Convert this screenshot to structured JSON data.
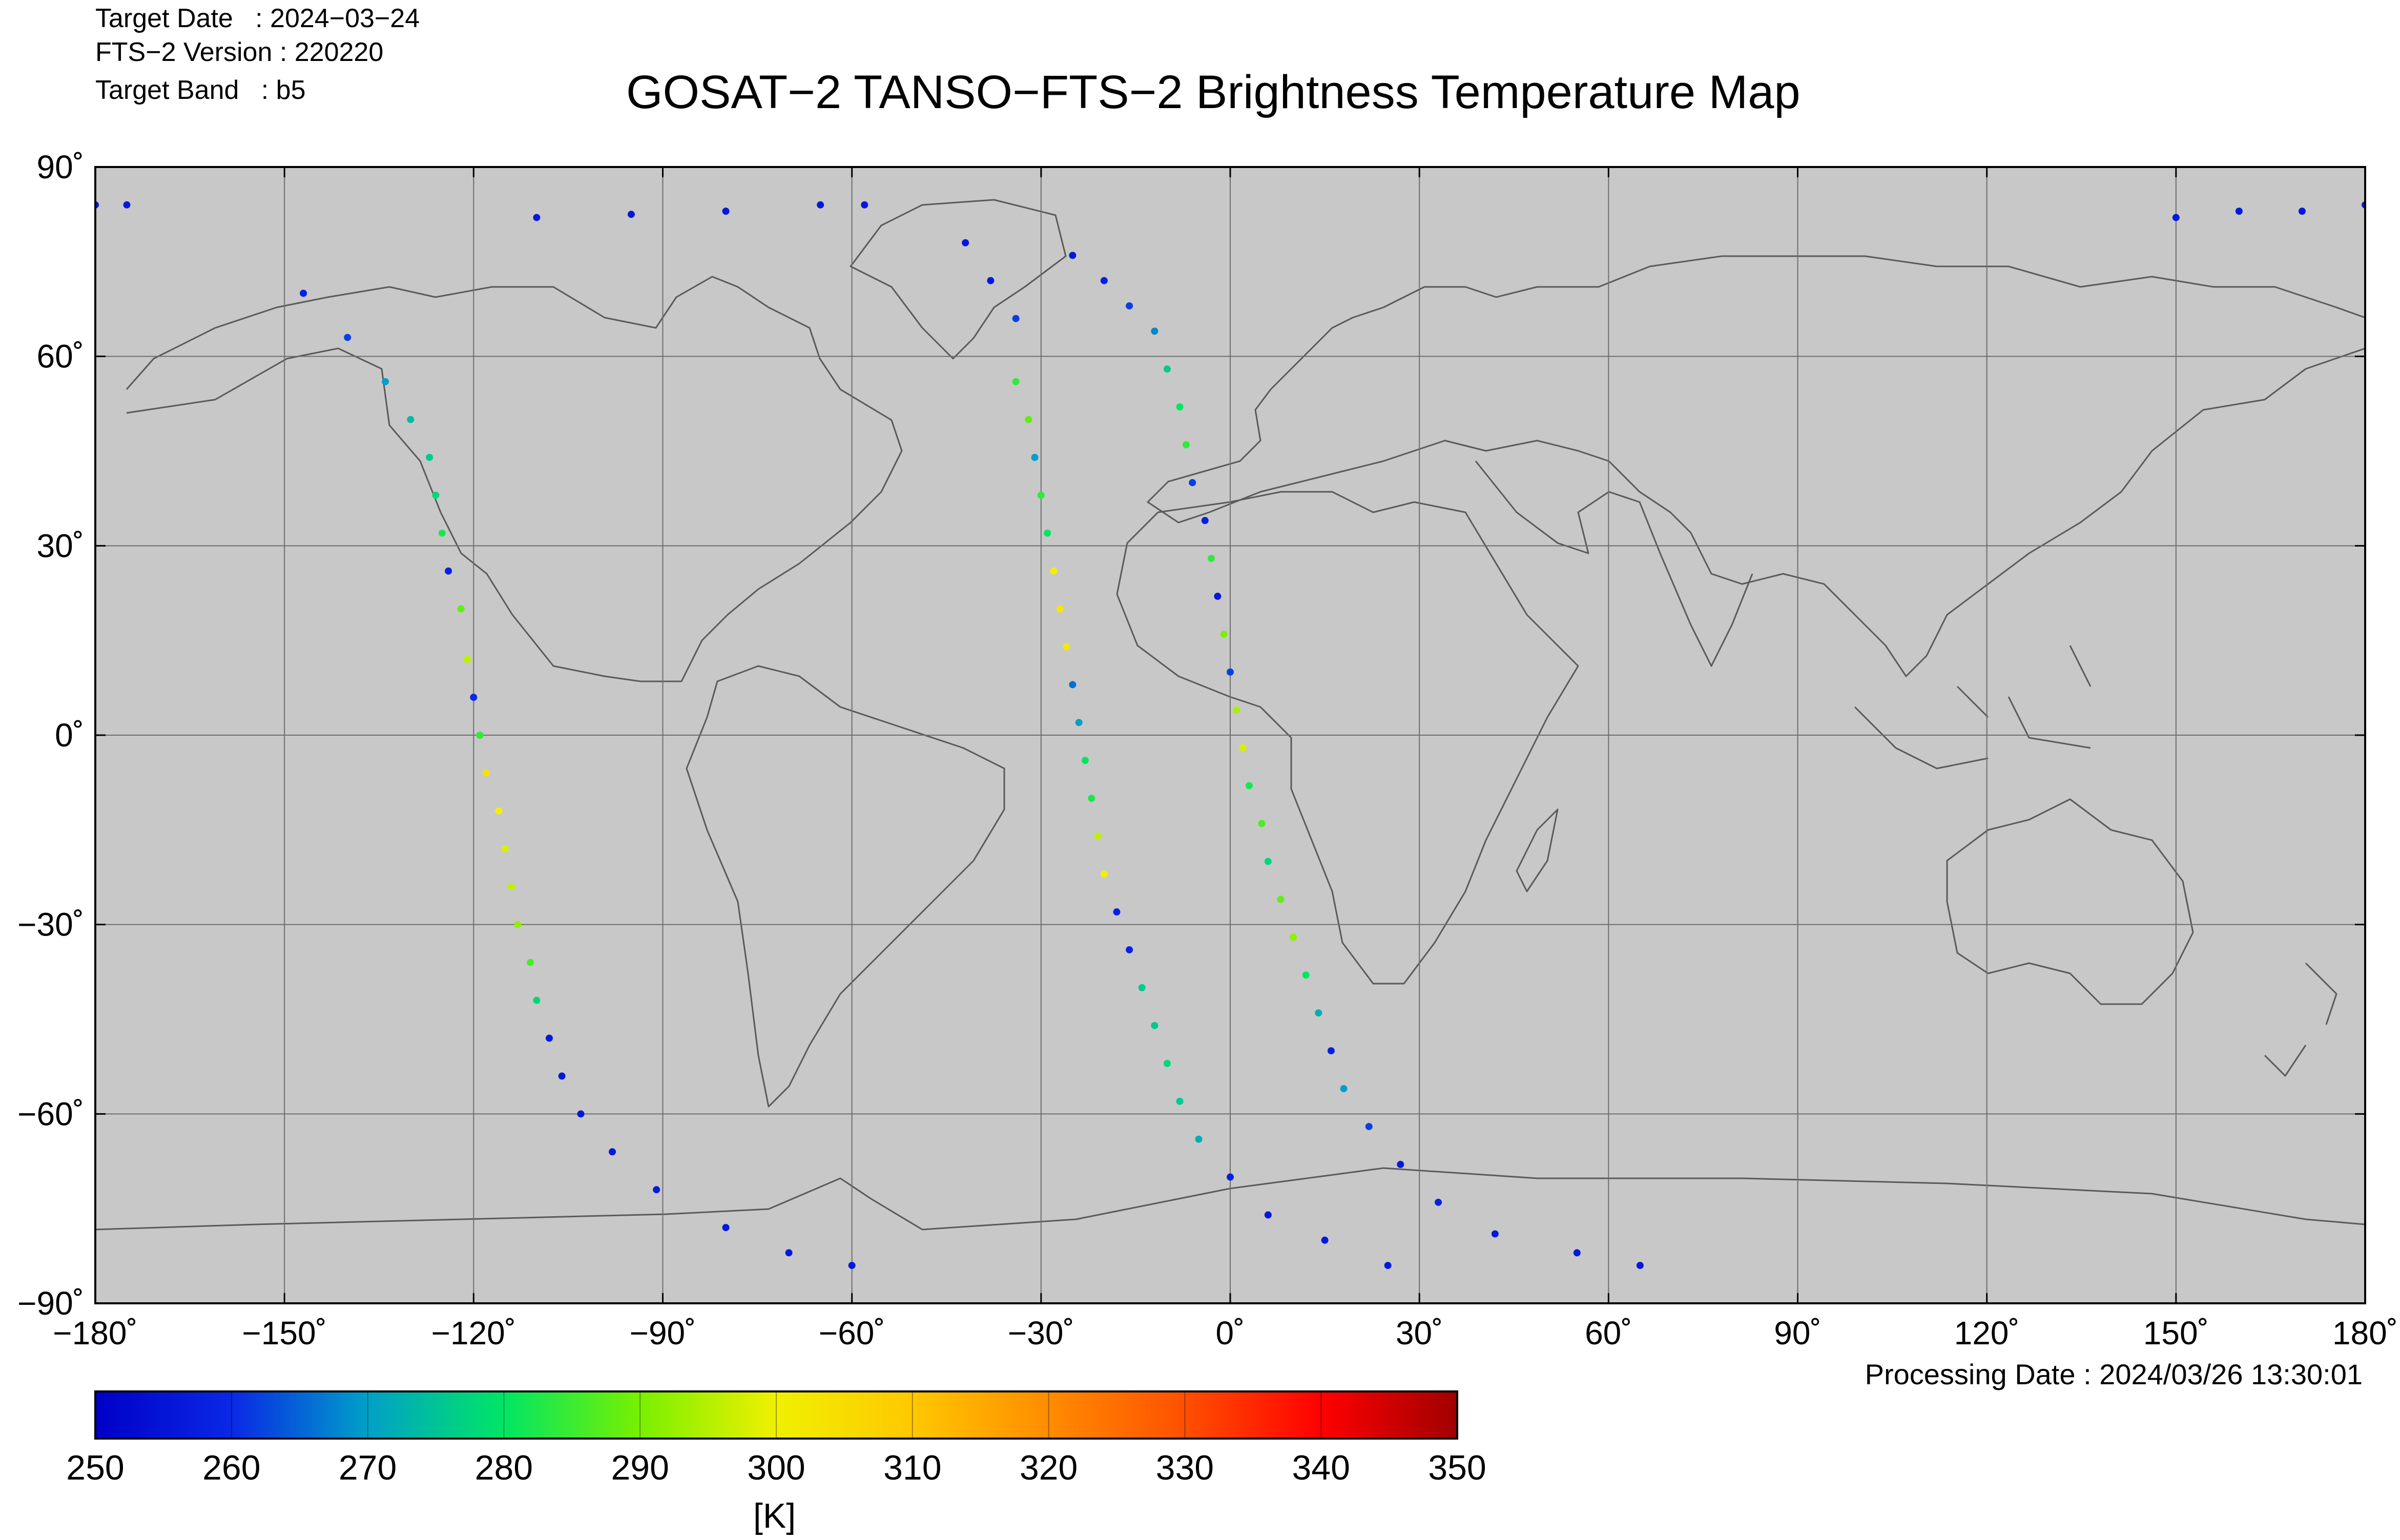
{
  "header": {
    "target_date": "Target Date   : 2024−03−24",
    "fts_version": "FTS−2 Version : 220220",
    "target_band": "Target Band   : b5",
    "title": "GOSAT−2 TANSO−FTS−2 Brightness Temperature Map"
  },
  "map": {
    "projection": "equirectangular",
    "lon_range": [
      -180,
      180
    ],
    "lat_range": [
      -90,
      90
    ],
    "grid": true,
    "background_color": "#c8c8c8",
    "coastline_color": "#555555",
    "lon_ticks": [
      {
        "value": -180,
        "label": "−180˚"
      },
      {
        "value": -150,
        "label": "−150˚"
      },
      {
        "value": -120,
        "label": "−120˚"
      },
      {
        "value": -90,
        "label": "−90˚"
      },
      {
        "value": -60,
        "label": "−60˚"
      },
      {
        "value": -30,
        "label": "−30˚"
      },
      {
        "value": 0,
        "label": "0˚"
      },
      {
        "value": 30,
        "label": "30˚"
      },
      {
        "value": 60,
        "label": "60˚"
      },
      {
        "value": 90,
        "label": "90˚"
      },
      {
        "value": 120,
        "label": "120˚"
      },
      {
        "value": 150,
        "label": "150˚"
      },
      {
        "value": 180,
        "label": "180˚"
      }
    ],
    "lat_ticks": [
      {
        "value": 90,
        "label": "90˚"
      },
      {
        "value": 60,
        "label": "60˚"
      },
      {
        "value": 30,
        "label": "30˚"
      },
      {
        "value": 0,
        "label": "0˚"
      },
      {
        "value": -30,
        "label": "−30˚"
      },
      {
        "value": -60,
        "label": "−60˚"
      },
      {
        "value": -90,
        "label": "−90˚"
      }
    ]
  },
  "chart_data": {
    "type": "scatter",
    "value_unit": "K",
    "color_range": [
      250,
      350
    ],
    "tracks": [
      {
        "points": [
          [
            -147,
            70,
            258
          ],
          [
            -140,
            63,
            262
          ],
          [
            -134,
            56,
            270
          ],
          [
            -130,
            50,
            274
          ],
          [
            -127,
            44,
            276
          ],
          [
            -126,
            38,
            278
          ],
          [
            -125,
            32,
            282
          ],
          [
            -124,
            26,
            258
          ],
          [
            -122,
            20,
            288
          ],
          [
            -121,
            12,
            296
          ],
          [
            -120,
            6,
            260
          ],
          [
            -119,
            0,
            284
          ],
          [
            -118,
            -6,
            304
          ],
          [
            -116,
            -12,
            300
          ],
          [
            -115,
            -18,
            298
          ],
          [
            -114,
            -24,
            296
          ],
          [
            -113,
            -30,
            292
          ],
          [
            -111,
            -36,
            286
          ],
          [
            -110,
            -42,
            278
          ],
          [
            -108,
            -48,
            256
          ],
          [
            -106,
            -54,
            256
          ],
          [
            -103,
            -60,
            256
          ],
          [
            -98,
            -66,
            256
          ],
          [
            -91,
            -72,
            256
          ],
          [
            -80,
            -78,
            256
          ],
          [
            -70,
            -82,
            256
          ],
          [
            -60,
            -84,
            256
          ]
        ]
      },
      {
        "points": [
          [
            -42,
            78,
            256
          ],
          [
            -38,
            72,
            256
          ],
          [
            -34,
            66,
            262
          ],
          [
            -34,
            56,
            284
          ],
          [
            -32,
            50,
            288
          ],
          [
            -31,
            44,
            270
          ],
          [
            -30,
            38,
            284
          ],
          [
            -29,
            32,
            280
          ],
          [
            -28,
            26,
            300
          ],
          [
            -27,
            20,
            302
          ],
          [
            -26,
            14,
            302
          ],
          [
            -25,
            8,
            266
          ],
          [
            -24,
            2,
            270
          ],
          [
            -23,
            -4,
            280
          ],
          [
            -22,
            -10,
            282
          ],
          [
            -21,
            -16,
            296
          ],
          [
            -20,
            -22,
            300
          ],
          [
            -18,
            -28,
            258
          ],
          [
            -16,
            -34,
            258
          ],
          [
            -14,
            -40,
            276
          ],
          [
            -12,
            -46,
            276
          ],
          [
            -10,
            -52,
            278
          ],
          [
            -8,
            -58,
            276
          ],
          [
            -5,
            -64,
            272
          ],
          [
            0,
            -70,
            258
          ],
          [
            6,
            -76,
            256
          ],
          [
            15,
            -80,
            256
          ],
          [
            25,
            -84,
            256
          ]
        ]
      },
      {
        "points": [
          [
            -25,
            76,
            256
          ],
          [
            -20,
            72,
            258
          ],
          [
            -16,
            68,
            262
          ],
          [
            -12,
            64,
            268
          ],
          [
            -10,
            58,
            276
          ],
          [
            -8,
            52,
            280
          ],
          [
            -7,
            46,
            284
          ],
          [
            -6,
            40,
            262
          ],
          [
            -4,
            34,
            258
          ],
          [
            -3,
            28,
            284
          ],
          [
            -2,
            22,
            256
          ],
          [
            -1,
            16,
            290
          ],
          [
            0,
            10,
            262
          ],
          [
            1,
            4,
            294
          ],
          [
            2,
            -2,
            298
          ],
          [
            3,
            -8,
            282
          ],
          [
            5,
            -14,
            286
          ],
          [
            6,
            -20,
            278
          ],
          [
            8,
            -26,
            288
          ],
          [
            10,
            -32,
            292
          ],
          [
            12,
            -38,
            280
          ],
          [
            14,
            -44,
            272
          ],
          [
            16,
            -50,
            258
          ],
          [
            18,
            -56,
            270
          ],
          [
            22,
            -62,
            262
          ],
          [
            27,
            -68,
            256
          ],
          [
            33,
            -74,
            258
          ],
          [
            42,
            -79,
            256
          ],
          [
            55,
            -82,
            256
          ],
          [
            65,
            -84,
            256
          ]
        ]
      },
      {
        "points": [
          [
            -110,
            82,
            256
          ],
          [
            -95,
            82.5,
            256
          ],
          [
            -80,
            83,
            256
          ],
          [
            -65,
            84,
            256
          ],
          [
            -58,
            84,
            256
          ],
          [
            150,
            82,
            256
          ],
          [
            160,
            83,
            256
          ],
          [
            170,
            83,
            256
          ],
          [
            180,
            84,
            256
          ],
          [
            -180,
            84,
            256
          ],
          [
            -175,
            84,
            256
          ]
        ]
      }
    ]
  },
  "colorbar": {
    "min": 250,
    "max": 350,
    "tick_labels": [
      "250",
      "260",
      "270",
      "280",
      "290",
      "300",
      "310",
      "320",
      "330",
      "340",
      "350"
    ],
    "unit_label": "[K]",
    "colors": [
      "#0000c8",
      "#0a28e6",
      "#00a0c8",
      "#00e664",
      "#78f000",
      "#f0f000",
      "#ffc800",
      "#ff8c00",
      "#ff5000",
      "#ff0000",
      "#a00000"
    ]
  },
  "footer": {
    "processing_date": "Processing Date : 2024/03/26 13:30:01"
  }
}
